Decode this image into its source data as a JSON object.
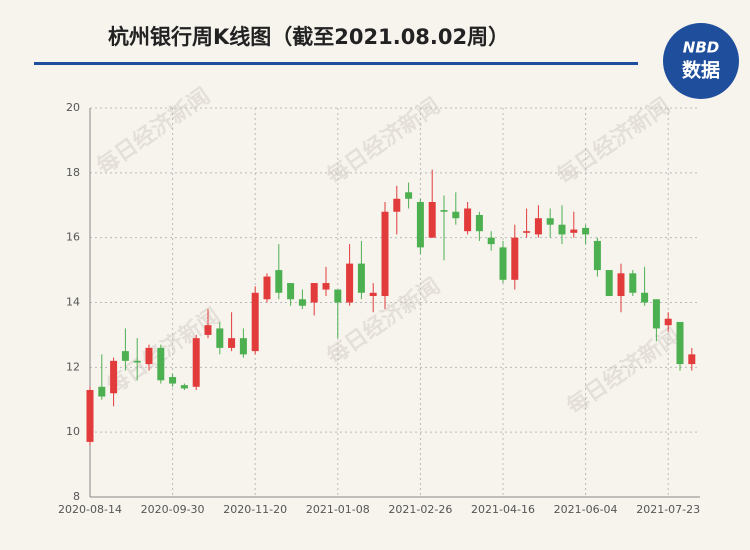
{
  "chart_data": {
    "type": "candlestick",
    "title": "杭州银行周K线图（截至2021.08.02周）",
    "logo": {
      "top": "NBD",
      "bottom": "数据"
    },
    "watermark": "每日经济新闻",
    "categories": [
      "2020-08-14",
      null,
      null,
      null,
      null,
      null,
      null,
      "2020-09-30",
      null,
      null,
      null,
      null,
      null,
      null,
      "2020-11-20",
      null,
      null,
      null,
      null,
      null,
      null,
      "2021-01-08",
      null,
      null,
      null,
      null,
      null,
      null,
      "2021-02-26",
      null,
      null,
      null,
      null,
      null,
      null,
      "2021-04-16",
      null,
      null,
      null,
      null,
      null,
      null,
      "2021-06-04",
      null,
      null,
      null,
      null,
      null,
      null,
      "2021-07-23",
      null,
      null
    ],
    "open": [
      9.7,
      11.4,
      11.2,
      12.5,
      12.2,
      12.1,
      12.6,
      11.7,
      11.45,
      11.4,
      13.0,
      13.2,
      12.6,
      12.9,
      12.5,
      14.1,
      15.0,
      14.6,
      14.1,
      14.0,
      14.4,
      14.4,
      14.0,
      15.2,
      14.2,
      14.2,
      16.8,
      17.4,
      17.1,
      16.0,
      16.85,
      16.8,
      16.2,
      16.7,
      16.0,
      15.7,
      14.7,
      16.15,
      16.1,
      16.6,
      16.4,
      16.15,
      16.3,
      15.9,
      15.0,
      14.2,
      14.9,
      14.3,
      14.1,
      13.3,
      13.4,
      12.1
    ],
    "high": [
      11.4,
      12.4,
      12.3,
      13.2,
      12.9,
      12.7,
      12.7,
      11.8,
      11.5,
      13.0,
      13.8,
      13.4,
      13.7,
      13.2,
      14.5,
      14.9,
      15.8,
      14.6,
      14.4,
      14.6,
      15.1,
      14.4,
      15.8,
      15.9,
      14.6,
      17.1,
      17.6,
      17.7,
      17.2,
      18.1,
      17.3,
      17.4,
      17.1,
      16.8,
      16.2,
      15.9,
      16.4,
      16.9,
      17.0,
      16.9,
      17.0,
      16.8,
      16.4,
      16.0,
      15.0,
      15.2,
      15.0,
      15.1,
      14.1,
      13.7,
      13.4,
      12.6
    ],
    "low": [
      9.6,
      11.0,
      10.8,
      11.9,
      11.6,
      11.9,
      11.5,
      11.4,
      11.3,
      11.3,
      12.9,
      12.4,
      12.5,
      12.3,
      12.4,
      14.0,
      14.1,
      13.9,
      13.8,
      13.6,
      14.2,
      12.9,
      13.9,
      14.1,
      13.7,
      13.8,
      16.1,
      16.9,
      15.5,
      16.0,
      15.3,
      16.4,
      16.1,
      15.9,
      15.6,
      14.6,
      14.4,
      16.0,
      16.0,
      16.0,
      15.8,
      16.0,
      15.8,
      14.8,
      14.2,
      13.7,
      14.2,
      13.9,
      12.8,
      13.1,
      11.9,
      11.9
    ],
    "close": [
      11.3,
      11.1,
      12.2,
      12.2,
      12.15,
      12.6,
      11.6,
      11.5,
      11.35,
      12.9,
      13.3,
      12.6,
      12.9,
      12.4,
      14.3,
      14.8,
      14.3,
      14.1,
      13.9,
      14.6,
      14.6,
      14.0,
      15.2,
      14.3,
      14.3,
      16.8,
      17.2,
      17.2,
      15.7,
      17.1,
      16.8,
      16.6,
      16.9,
      16.2,
      15.8,
      14.7,
      16.0,
      16.2,
      16.6,
      16.4,
      16.1,
      16.25,
      16.1,
      15.0,
      14.2,
      14.9,
      14.3,
      14.0,
      13.2,
      13.5,
      12.1,
      12.4
    ],
    "up_color": "#e23b3b",
    "down_color": "#4caf50",
    "ylim": [
      8,
      20
    ],
    "yticks": [
      8,
      10,
      12,
      14,
      16,
      18,
      20
    ],
    "grid": true
  }
}
